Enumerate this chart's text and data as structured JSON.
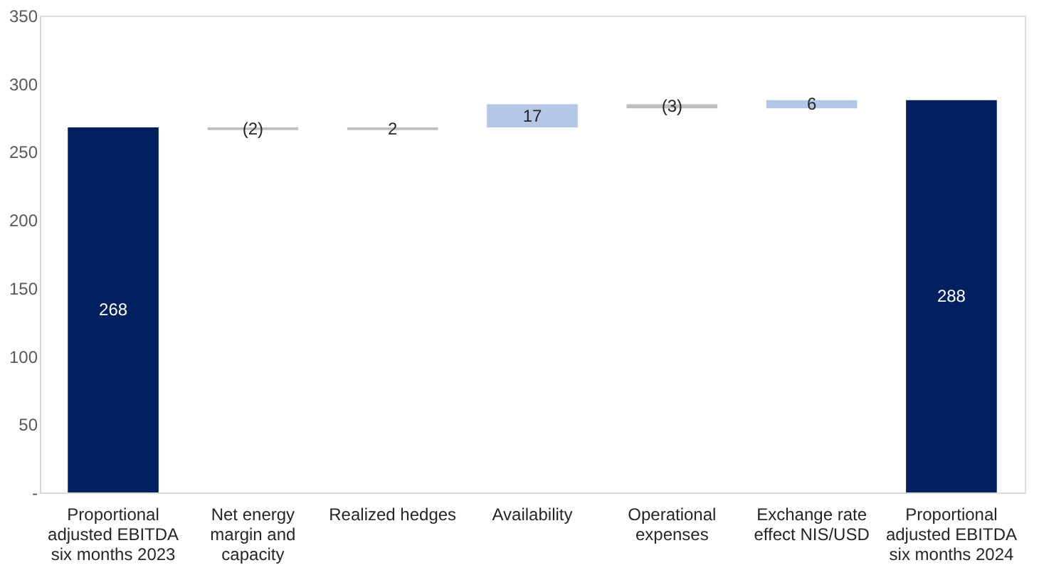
{
  "chart_data": {
    "type": "bar",
    "categories": [
      "Proportional adjusted EBITDA six months 2023",
      "Net energy margin and capacity",
      "Realized hedges",
      "Availability",
      "Operational expenses",
      "Exchange rate effect NIS/USD",
      "Proportional adjusted EBITDA six months 2024"
    ],
    "values": [
      268,
      -2,
      2,
      17,
      -3,
      6,
      288
    ],
    "base": [
      0,
      268,
      266,
      268,
      285,
      282,
      0
    ],
    "colors": [
      "#002060",
      "#bfbfbf",
      "#bfbfbf",
      "#b4c7e7",
      "#bfbfbf",
      "#b4c7e7",
      "#002060"
    ],
    "value_labels": [
      "268",
      "(2)",
      "2",
      "17",
      "(3)",
      "6",
      "288"
    ],
    "ylim": [
      0,
      350
    ],
    "yticks": [
      {
        "value": 0,
        "label": "-"
      },
      50,
      100,
      150,
      200,
      250,
      300,
      350
    ],
    "grid": false
  }
}
